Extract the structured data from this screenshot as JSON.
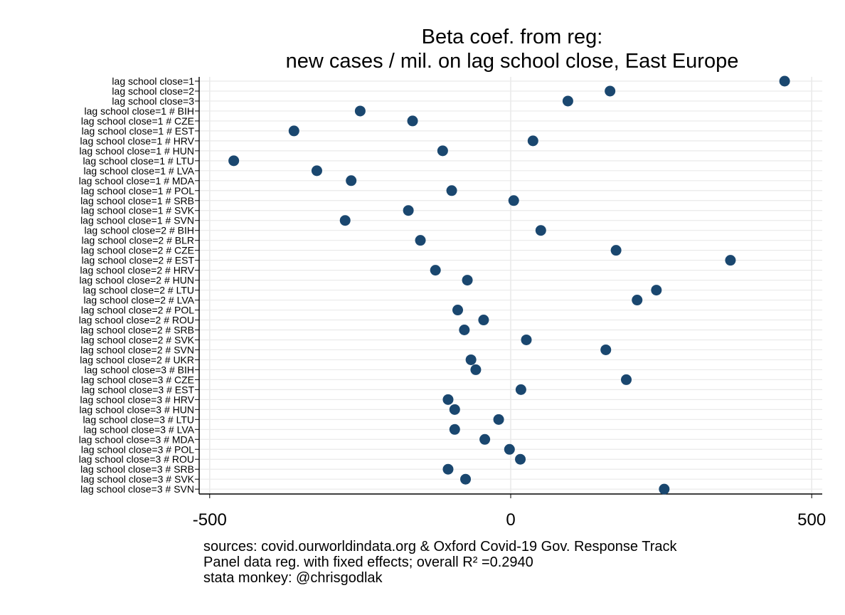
{
  "chart_data": {
    "type": "scatter",
    "title": "Beta coef. from reg:",
    "subtitle": "new cases / mil. on lag school close, East Europe",
    "xlabel": "",
    "ylabel": "",
    "xlim": [
      -500,
      500
    ],
    "xticks": [
      -500,
      0,
      500
    ],
    "xtick_labels": [
      "-500",
      "0",
      "500"
    ],
    "grid": true,
    "marker_color": "#1a476f",
    "categories": [
      "lag school close=1",
      "lag school close=2",
      "lag school close=3",
      "lag school close=1 # BIH",
      "lag school close=1 # CZE",
      "lag school close=1 # EST",
      "lag school close=1 # HRV",
      "lag school close=1 # HUN",
      "lag school close=1 # LTU",
      "lag school close=1 # LVA",
      "lag school close=1 # MDA",
      "lag school close=1 # POL",
      "lag school close=1 # SRB",
      "lag school close=1 # SVK",
      "lag school close=1 # SVN",
      "lag school close=2 # BIH",
      "lag school close=2 # BLR",
      "lag school close=2 # CZE",
      "lag school close=2 # EST",
      "lag school close=2 # HRV",
      "lag school close=2 # HUN",
      "lag school close=2 # LTU",
      "lag school close=2 # LVA",
      "lag school close=2 # POL",
      "lag school close=2 # ROU",
      "lag school close=2 # SRB",
      "lag school close=2 # SVK",
      "lag school close=2 # SVN",
      "lag school close=2 # UKR",
      "lag school close=3 # BIH",
      "lag school close=3 # CZE",
      "lag school close=3 # EST",
      "lag school close=3 # HRV",
      "lag school close=3 # HUN",
      "lag school close=3 # LTU",
      "lag school close=3 # LVA",
      "lag school close=3 # MDA",
      "lag school close=3 # POL",
      "lag school close=3 # ROU",
      "lag school close=3 # SRB",
      "lag school close=3 # SVK",
      "lag school close=3 # SVN"
    ],
    "values": [
      455,
      165,
      95,
      -250,
      -163,
      -360,
      37,
      -113,
      -460,
      -322,
      -265,
      -98,
      5,
      -170,
      -275,
      50,
      -150,
      175,
      365,
      -125,
      -72,
      242,
      210,
      -88,
      -45,
      -77,
      26,
      158,
      -66,
      -58,
      192,
      17,
      -104,
      -93,
      -20,
      -93,
      -43,
      -2,
      16,
      -104,
      -75,
      255
    ]
  },
  "notes": [
    "sources: covid.ourworldindata.org & Oxford Covid-19 Gov. Response Track",
    "Panel data reg. with fixed effects; overall R² =0.2940",
    "stata monkey: @chrisgodlak"
  ]
}
